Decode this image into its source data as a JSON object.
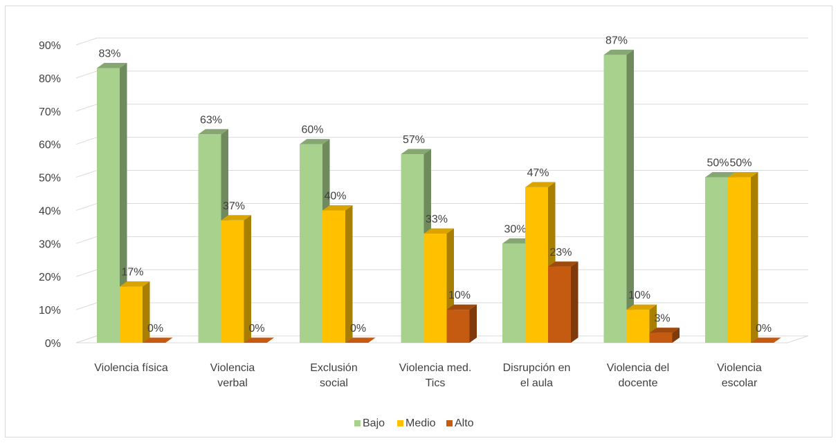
{
  "chart_data": {
    "type": "bar",
    "title": "",
    "xlabel": "",
    "ylabel": "",
    "ylim": [
      0,
      90
    ],
    "y_ticks": [
      "0%",
      "10%",
      "20%",
      "30%",
      "40%",
      "50%",
      "60%",
      "70%",
      "80%",
      "90%"
    ],
    "grid": true,
    "legend_position": "bottom",
    "categories": [
      [
        "Violencia física"
      ],
      [
        "Violencia",
        "verbal"
      ],
      [
        "Exclusión",
        "social"
      ],
      [
        "Violencia med.",
        "Tics"
      ],
      [
        "Disrupción en",
        "el aula"
      ],
      [
        "Violencia del",
        "docente"
      ],
      [
        "Violencia",
        "escolar"
      ]
    ],
    "series": [
      {
        "name": "Bajo",
        "color": "#a9d18e",
        "side_color": "#6f8a5c",
        "top_color": "#86a772",
        "values": [
          83,
          63,
          60,
          57,
          30,
          87,
          50
        ]
      },
      {
        "name": "Medio",
        "color": "#ffc000",
        "side_color": "#a87f00",
        "top_color": "#d9a300",
        "values": [
          17,
          37,
          40,
          33,
          47,
          10,
          50
        ]
      },
      {
        "name": "Alto",
        "color": "#c55a11",
        "side_color": "#7f3a0b",
        "top_color": "#a14a0e",
        "values": [
          0,
          0,
          0,
          10,
          23,
          3,
          0
        ]
      }
    ],
    "data_labels": [
      [
        "83%",
        "63%",
        "60%",
        "57%",
        "30%",
        "87%",
        "50%"
      ],
      [
        "17%",
        "37%",
        "40%",
        "33%",
        "47%",
        "10%",
        "50%"
      ],
      [
        "0%",
        "0%",
        "0%",
        "10%",
        "23%",
        "3%",
        "0%"
      ]
    ]
  }
}
